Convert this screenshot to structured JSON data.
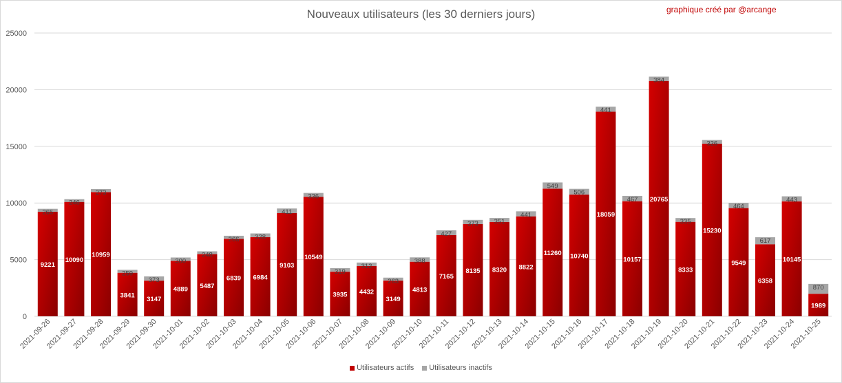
{
  "chart_data": {
    "type": "bar",
    "stacked": true,
    "title": "Nouveaux utilisateurs  (les 30 derniers  jours)",
    "annotation": "graphique créé par @arcange",
    "xlabel": "",
    "ylabel": "",
    "ylim": [
      0,
      25000
    ],
    "yticks": [
      0,
      5000,
      10000,
      15000,
      20000,
      25000
    ],
    "grid": true,
    "legend_position": "bottom",
    "categories": [
      "2021-09-26",
      "2021-09-27",
      "2021-09-28",
      "2021-09-29",
      "2021-09-30",
      "2021-10-01",
      "2021-10-02",
      "2021-10-03",
      "2021-10-04",
      "2021-10-05",
      "2021-10-06",
      "2021-10-07",
      "2021-10-08",
      "2021-10-09",
      "2021-10-10",
      "2021-10-11",
      "2021-10-12",
      "2021-10-13",
      "2021-10-14",
      "2021-10-15",
      "2021-10-16",
      "2021-10-17",
      "2021-10-18",
      "2021-10-19",
      "2021-10-20",
      "2021-10-21",
      "2021-10-22",
      "2021-10-23",
      "2021-10-24",
      "2021-10-25"
    ],
    "series": [
      {
        "name": "Utilisateurs actifs",
        "color": "#c00000",
        "values": [
          9221,
          10090,
          10959,
          3841,
          3147,
          4889,
          5487,
          6839,
          6984,
          9103,
          10549,
          3935,
          4432,
          3149,
          4813,
          7165,
          8135,
          8320,
          8822,
          11260,
          10740,
          18059,
          10157,
          20765,
          8333,
          15230,
          9549,
          6358,
          10145,
          1989
        ]
      },
      {
        "name": "Utilisateurs inactifs",
        "color": "#a6a6a6",
        "values": [
          265,
          246,
          273,
          259,
          373,
          300,
          248,
          266,
          328,
          411,
          336,
          319,
          312,
          263,
          388,
          427,
          373,
          351,
          441,
          549,
          506,
          441,
          467,
          384,
          335,
          326,
          464,
          617,
          443,
          870
        ]
      }
    ]
  }
}
